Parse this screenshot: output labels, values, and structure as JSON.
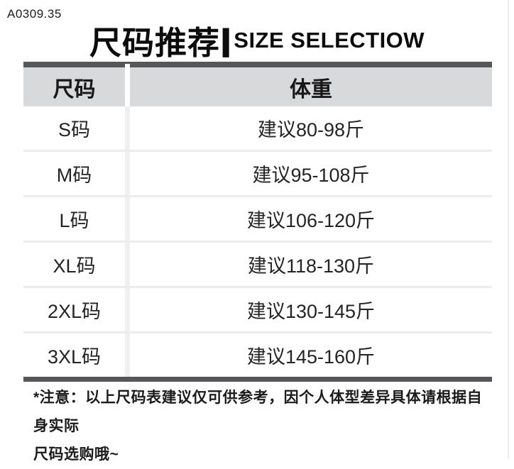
{
  "page": {
    "product_code": "A0309.35",
    "title_cn": "尺码推荐",
    "title_separator": "|",
    "title_en": "SIZE SELECTIOW"
  },
  "table": {
    "headers": {
      "size": "尺码",
      "weight": "体重"
    },
    "rows": [
      {
        "size": "S码",
        "weight": "建议80-98斤"
      },
      {
        "size": "M码",
        "weight": "建议95-108斤"
      },
      {
        "size": "L码",
        "weight": "建议106-120斤"
      },
      {
        "size": "XL码",
        "weight": "建议118-130斤"
      },
      {
        "size": "2XL码",
        "weight": "建议130-145斤"
      },
      {
        "size": "3XL码",
        "weight": "建议145-160斤"
      }
    ]
  },
  "note": {
    "line1": "*注意：以上尺码表建议仅可供参考，因个人体型差异具体请根据自身实际",
    "line2": "尺码选购哦~"
  },
  "colors": {
    "table_frame": "#55565a",
    "header_bg": "#d8d9da",
    "row_divider": "#ececec",
    "column_divider": "#f0f0f0",
    "text": "#1d1d1d"
  }
}
